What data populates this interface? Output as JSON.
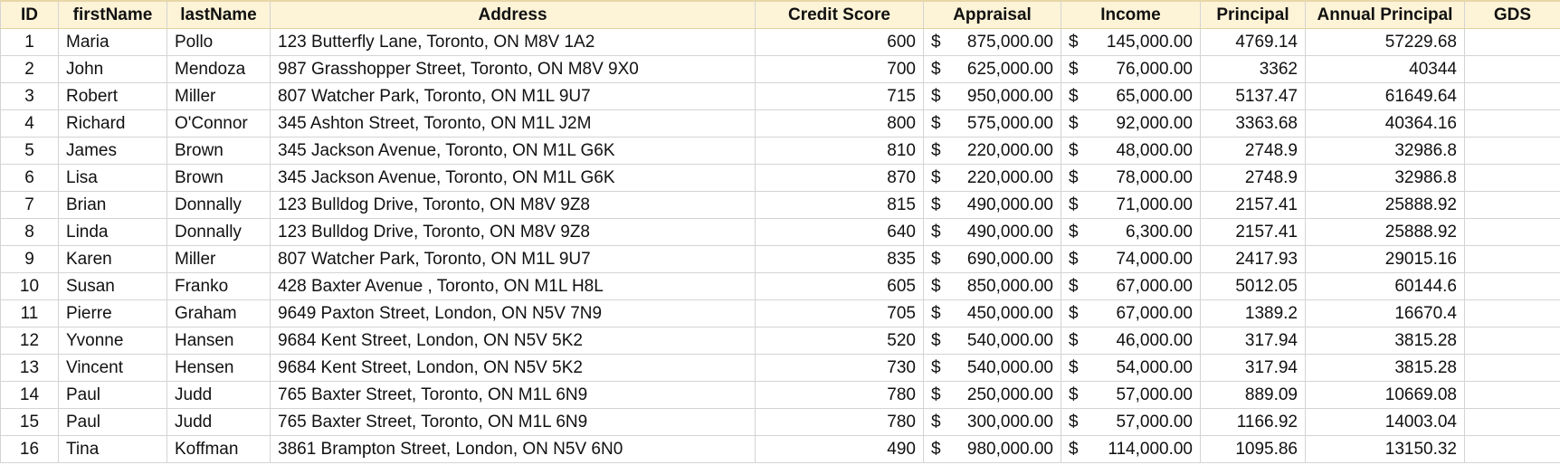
{
  "sheet": {
    "headers": [
      "ID",
      "firstName",
      "lastName",
      "Address",
      "Credit Score",
      "Appraisal",
      "Income",
      "Principal",
      "Annual Principal",
      "GDS"
    ],
    "currency_symbol": "$",
    "rows": [
      {
        "id": "1",
        "first": "Maria",
        "last": "Pollo",
        "address": "123 Butterfly Lane, Toronto, ON M8V 1A2",
        "credit": "600",
        "appraisal": "875,000.00",
        "income": "145,000.00",
        "principal": "4769.14",
        "annual": "57229.68",
        "gds": ""
      },
      {
        "id": "2",
        "first": "John",
        "last": "Mendoza",
        "address": "987 Grasshopper Street, Toronto, ON M8V 9X0",
        "credit": "700",
        "appraisal": "625,000.00",
        "income": "76,000.00",
        "principal": "3362",
        "annual": "40344",
        "gds": ""
      },
      {
        "id": "3",
        "first": "Robert",
        "last": "Miller",
        "address": "807 Watcher Park, Toronto, ON  M1L 9U7",
        "credit": "715",
        "appraisal": "950,000.00",
        "income": "65,000.00",
        "principal": "5137.47",
        "annual": "61649.64",
        "gds": ""
      },
      {
        "id": "4",
        "first": "Richard",
        "last": "O'Connor",
        "address": "345 Ashton Street, Toronto, ON  M1L J2M",
        "credit": "800",
        "appraisal": "575,000.00",
        "income": "92,000.00",
        "principal": "3363.68",
        "annual": "40364.16",
        "gds": ""
      },
      {
        "id": "5",
        "first": "James",
        "last": "Brown",
        "address": "345 Jackson Avenue, Toronto, ON  M1L G6K",
        "credit": "810",
        "appraisal": "220,000.00",
        "income": "48,000.00",
        "principal": "2748.9",
        "annual": "32986.8",
        "gds": ""
      },
      {
        "id": "6",
        "first": "Lisa",
        "last": "Brown",
        "address": "345 Jackson Avenue, Toronto, ON  M1L G6K",
        "credit": "870",
        "appraisal": "220,000.00",
        "income": "78,000.00",
        "principal": "2748.9",
        "annual": "32986.8",
        "gds": ""
      },
      {
        "id": "7",
        "first": "Brian",
        "last": "Donnally",
        "address": "123 Bulldog Drive, Toronto, ON  M8V 9Z8",
        "credit": "815",
        "appraisal": "490,000.00",
        "income": "71,000.00",
        "principal": "2157.41",
        "annual": "25888.92",
        "gds": ""
      },
      {
        "id": "8",
        "first": "Linda",
        "last": "Donnally",
        "address": "123 Bulldog Drive, Toronto, ON  M8V 9Z8",
        "credit": "640",
        "appraisal": "490,000.00",
        "income": "6,300.00",
        "principal": "2157.41",
        "annual": "25888.92",
        "gds": ""
      },
      {
        "id": "9",
        "first": "Karen",
        "last": "Miller",
        "address": "807 Watcher Park, Toronto, ON  M1L 9U7",
        "credit": "835",
        "appraisal": "690,000.00",
        "income": "74,000.00",
        "principal": "2417.93",
        "annual": "29015.16",
        "gds": ""
      },
      {
        "id": "10",
        "first": "Susan",
        "last": "Franko",
        "address": "428 Baxter Avenue , Toronto, ON  M1L H8L",
        "credit": "605",
        "appraisal": "850,000.00",
        "income": "67,000.00",
        "principal": "5012.05",
        "annual": "60144.6",
        "gds": ""
      },
      {
        "id": "11",
        "first": "Pierre",
        "last": "Graham",
        "address": "9649 Paxton Street, London, ON  N5V 7N9",
        "credit": "705",
        "appraisal": "450,000.00",
        "income": "67,000.00",
        "principal": "1389.2",
        "annual": "16670.4",
        "gds": ""
      },
      {
        "id": "12",
        "first": "Yvonne",
        "last": "Hansen",
        "address": "9684 Kent Street, London, ON  N5V 5K2",
        "credit": "520",
        "appraisal": "540,000.00",
        "income": "46,000.00",
        "principal": "317.94",
        "annual": "3815.28",
        "gds": ""
      },
      {
        "id": "13",
        "first": "Vincent",
        "last": "Hensen",
        "address": "9684 Kent Street, London, ON  N5V 5K2",
        "credit": "730",
        "appraisal": "540,000.00",
        "income": "54,000.00",
        "principal": "317.94",
        "annual": "3815.28",
        "gds": ""
      },
      {
        "id": "14",
        "first": "Paul",
        "last": "Judd",
        "address": "765 Baxter Street, Toronto, ON  M1L 6N9",
        "credit": "780",
        "appraisal": "250,000.00",
        "income": "57,000.00",
        "principal": "889.09",
        "annual": "10669.08",
        "gds": ""
      },
      {
        "id": "15",
        "first": "Paul",
        "last": "Judd",
        "address": "765 Baxter Street, Toronto, ON  M1L 6N9",
        "credit": "780",
        "appraisal": "300,000.00",
        "income": "57,000.00",
        "principal": "1166.92",
        "annual": "14003.04",
        "gds": ""
      },
      {
        "id": "16",
        "first": "Tina",
        "last": "Koffman",
        "address": "3861 Brampton Street, London, ON  N5V 6N0",
        "credit": "490",
        "appraisal": "980,000.00",
        "income": "114,000.00",
        "principal": "1095.86",
        "annual": "13150.32",
        "gds": ""
      }
    ]
  }
}
